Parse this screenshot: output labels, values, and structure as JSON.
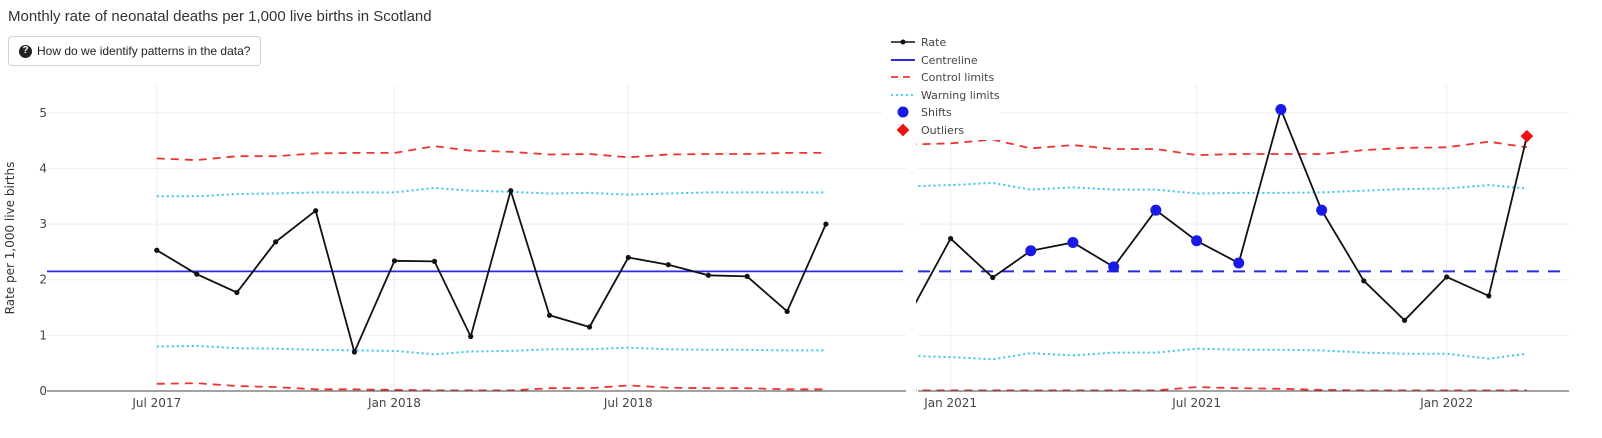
{
  "page": {
    "title": "Monthly rate of neonatal deaths per 1,000 live births in Scotland",
    "help_button_label": "How do we identify patterns in the data?"
  },
  "legend": {
    "rate": "Rate",
    "centreline": "Centreline",
    "control": "Control limits",
    "warning": "Warning limits",
    "shifts": "Shifts",
    "outliers": "Outliers"
  },
  "colors": {
    "rate": "#111111",
    "centreline": "#2b2bdf",
    "control": "#ee3333",
    "warning": "#39c6ee",
    "shifts": "#1a1ae6",
    "outliers": "#ee1111",
    "grid": "#eeeeee",
    "axis": "#444444"
  },
  "chart_data": [
    {
      "type": "line",
      "ylabel": "Rate per 1,000 live births",
      "ylim": [
        0,
        5.5
      ],
      "yticks": [
        0,
        1,
        2,
        3,
        4,
        5
      ],
      "xlim": [
        "2017-04-07",
        "2019-02-01"
      ],
      "xticks": [
        {
          "date": "2017-07-01",
          "label": "Jul 2017"
        },
        {
          "date": "2018-01-01",
          "label": "Jan 2018"
        },
        {
          "date": "2018-07-01",
          "label": "Jul 2018"
        }
      ],
      "x": [
        "2017-07-01",
        "2017-08-01",
        "2017-09-01",
        "2017-10-01",
        "2017-11-01",
        "2017-12-01",
        "2018-01-01",
        "2018-02-01",
        "2018-03-01",
        "2018-04-01",
        "2018-05-01",
        "2018-06-01",
        "2018-07-01",
        "2018-08-01",
        "2018-09-01",
        "2018-10-01",
        "2018-11-01",
        "2018-12-01"
      ],
      "rate": [
        2.53,
        2.1,
        1.77,
        2.68,
        3.24,
        0.7,
        2.34,
        2.33,
        0.98,
        3.6,
        1.36,
        1.15,
        2.4,
        2.27,
        2.08,
        2.06,
        1.43,
        3.0
      ],
      "centreline": [
        2.15,
        2.15,
        2.15,
        2.15,
        2.15,
        2.15,
        2.15,
        2.15,
        2.15,
        2.15,
        2.15,
        2.15,
        2.15,
        2.15,
        2.15,
        2.15,
        2.15,
        2.15
      ],
      "centreline_dashed": false,
      "upper_control": [
        4.18,
        4.15,
        4.22,
        4.22,
        4.27,
        4.28,
        4.28,
        4.4,
        4.32,
        4.3,
        4.25,
        4.26,
        4.2,
        4.25,
        4.26,
        4.26,
        4.28,
        4.28
      ],
      "lower_control": [
        0.13,
        0.14,
        0.09,
        0.07,
        0.03,
        0.03,
        0.02,
        0.01,
        0.01,
        0.01,
        0.05,
        0.05,
        0.1,
        0.06,
        0.05,
        0.05,
        0.03,
        0.03
      ],
      "upper_warning": [
        3.5,
        3.5,
        3.54,
        3.55,
        3.57,
        3.57,
        3.57,
        3.65,
        3.6,
        3.58,
        3.55,
        3.56,
        3.53,
        3.55,
        3.57,
        3.57,
        3.57,
        3.57
      ],
      "lower_warning": [
        0.8,
        0.81,
        0.77,
        0.76,
        0.74,
        0.73,
        0.72,
        0.66,
        0.71,
        0.72,
        0.75,
        0.75,
        0.78,
        0.75,
        0.74,
        0.74,
        0.73,
        0.73
      ],
      "shifts": [],
      "outliers": []
    },
    {
      "type": "line",
      "ylim": [
        0,
        5.5
      ],
      "xlim": [
        "2020-12-08",
        "2022-04-01"
      ],
      "xticks": [
        {
          "date": "2021-01-01",
          "label": "Jan 2021"
        },
        {
          "date": "2021-07-01",
          "label": "Jul 2021"
        },
        {
          "date": "2022-01-01",
          "label": "Jan 2022"
        }
      ],
      "x": [
        "2020-12-01",
        "2021-01-01",
        "2021-02-01",
        "2021-03-01",
        "2021-04-01",
        "2021-05-01",
        "2021-06-01",
        "2021-07-01",
        "2021-08-01",
        "2021-09-01",
        "2021-10-01",
        "2021-11-01",
        "2021-12-01",
        "2022-01-01",
        "2022-02-01",
        "2022-03-01"
      ],
      "rate": [
        1.35,
        2.74,
        2.04,
        2.52,
        2.67,
        2.23,
        3.25,
        2.7,
        2.3,
        5.06,
        3.25,
        1.98,
        1.27,
        2.05,
        1.71,
        4.58
      ],
      "centreline": [
        2.15,
        2.15,
        2.15,
        2.15,
        2.15,
        2.15,
        2.15,
        2.15,
        2.15,
        2.15,
        2.15,
        2.15,
        2.15,
        2.15,
        2.15,
        2.15
      ],
      "centreline_dashed": true,
      "upper_control": [
        4.43,
        4.45,
        4.52,
        4.36,
        4.42,
        4.35,
        4.35,
        4.24,
        4.26,
        4.26,
        4.26,
        4.33,
        4.37,
        4.38,
        4.48,
        4.38
      ],
      "lower_control": [
        0.01,
        0.01,
        0.01,
        0.01,
        0.01,
        0.01,
        0.01,
        0.07,
        0.05,
        0.04,
        0.02,
        0.01,
        0.01,
        0.01,
        0.01,
        0.01
      ],
      "upper_warning": [
        3.68,
        3.7,
        3.74,
        3.62,
        3.66,
        3.62,
        3.62,
        3.55,
        3.56,
        3.56,
        3.57,
        3.6,
        3.63,
        3.64,
        3.7,
        3.64
      ],
      "lower_warning": [
        0.63,
        0.61,
        0.57,
        0.68,
        0.64,
        0.69,
        0.69,
        0.76,
        0.74,
        0.74,
        0.73,
        0.69,
        0.67,
        0.67,
        0.58,
        0.67
      ],
      "shifts": [
        "2021-03-01",
        "2021-04-01",
        "2021-05-01",
        "2021-06-01",
        "2021-07-01",
        "2021-08-01",
        "2021-09-01",
        "2021-10-01"
      ],
      "outliers": [
        "2022-03-01"
      ]
    }
  ]
}
